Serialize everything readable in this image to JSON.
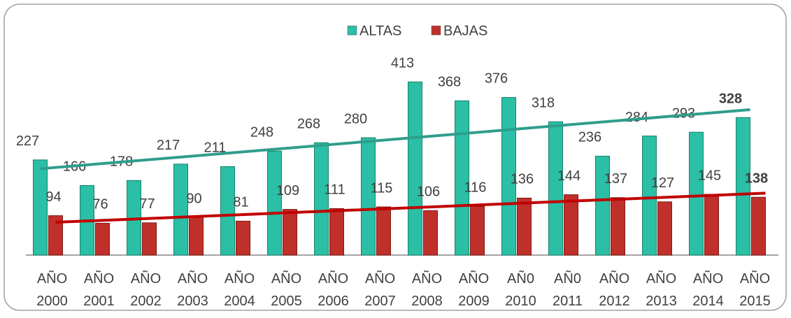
{
  "chart_data": {
    "type": "bar",
    "categories": [
      "AÑO 2000",
      "AÑO 2001",
      "AÑO 2002",
      "AÑO 2003",
      "AÑO 2004",
      "AÑO 2005",
      "AÑO 2006",
      "AÑO 2007",
      "AÑO 2008",
      "AÑO 2009",
      "AÑ0 2010",
      "AÑ0 2011",
      "AÑO 2012",
      "AÑO 2013",
      "AÑO 2014",
      "AÑO 2015"
    ],
    "series": [
      {
        "name": "ALTAS",
        "color": "#2bbfa6",
        "trend_color": "#2e9e8c",
        "values": [
          227,
          166,
          178,
          217,
          211,
          248,
          268,
          280,
          413,
          368,
          376,
          318,
          236,
          284,
          293,
          328
        ]
      },
      {
        "name": "BAJAS",
        "color": "#c0302b",
        "trend_color": "#c00000",
        "values": [
          94,
          76,
          77,
          90,
          81,
          109,
          111,
          115,
          106,
          116,
          136,
          144,
          137,
          127,
          145,
          138
        ]
      }
    ],
    "ylim": [
      0,
      600
    ],
    "trendline": true,
    "legend": "top",
    "bold_last_label": true
  }
}
